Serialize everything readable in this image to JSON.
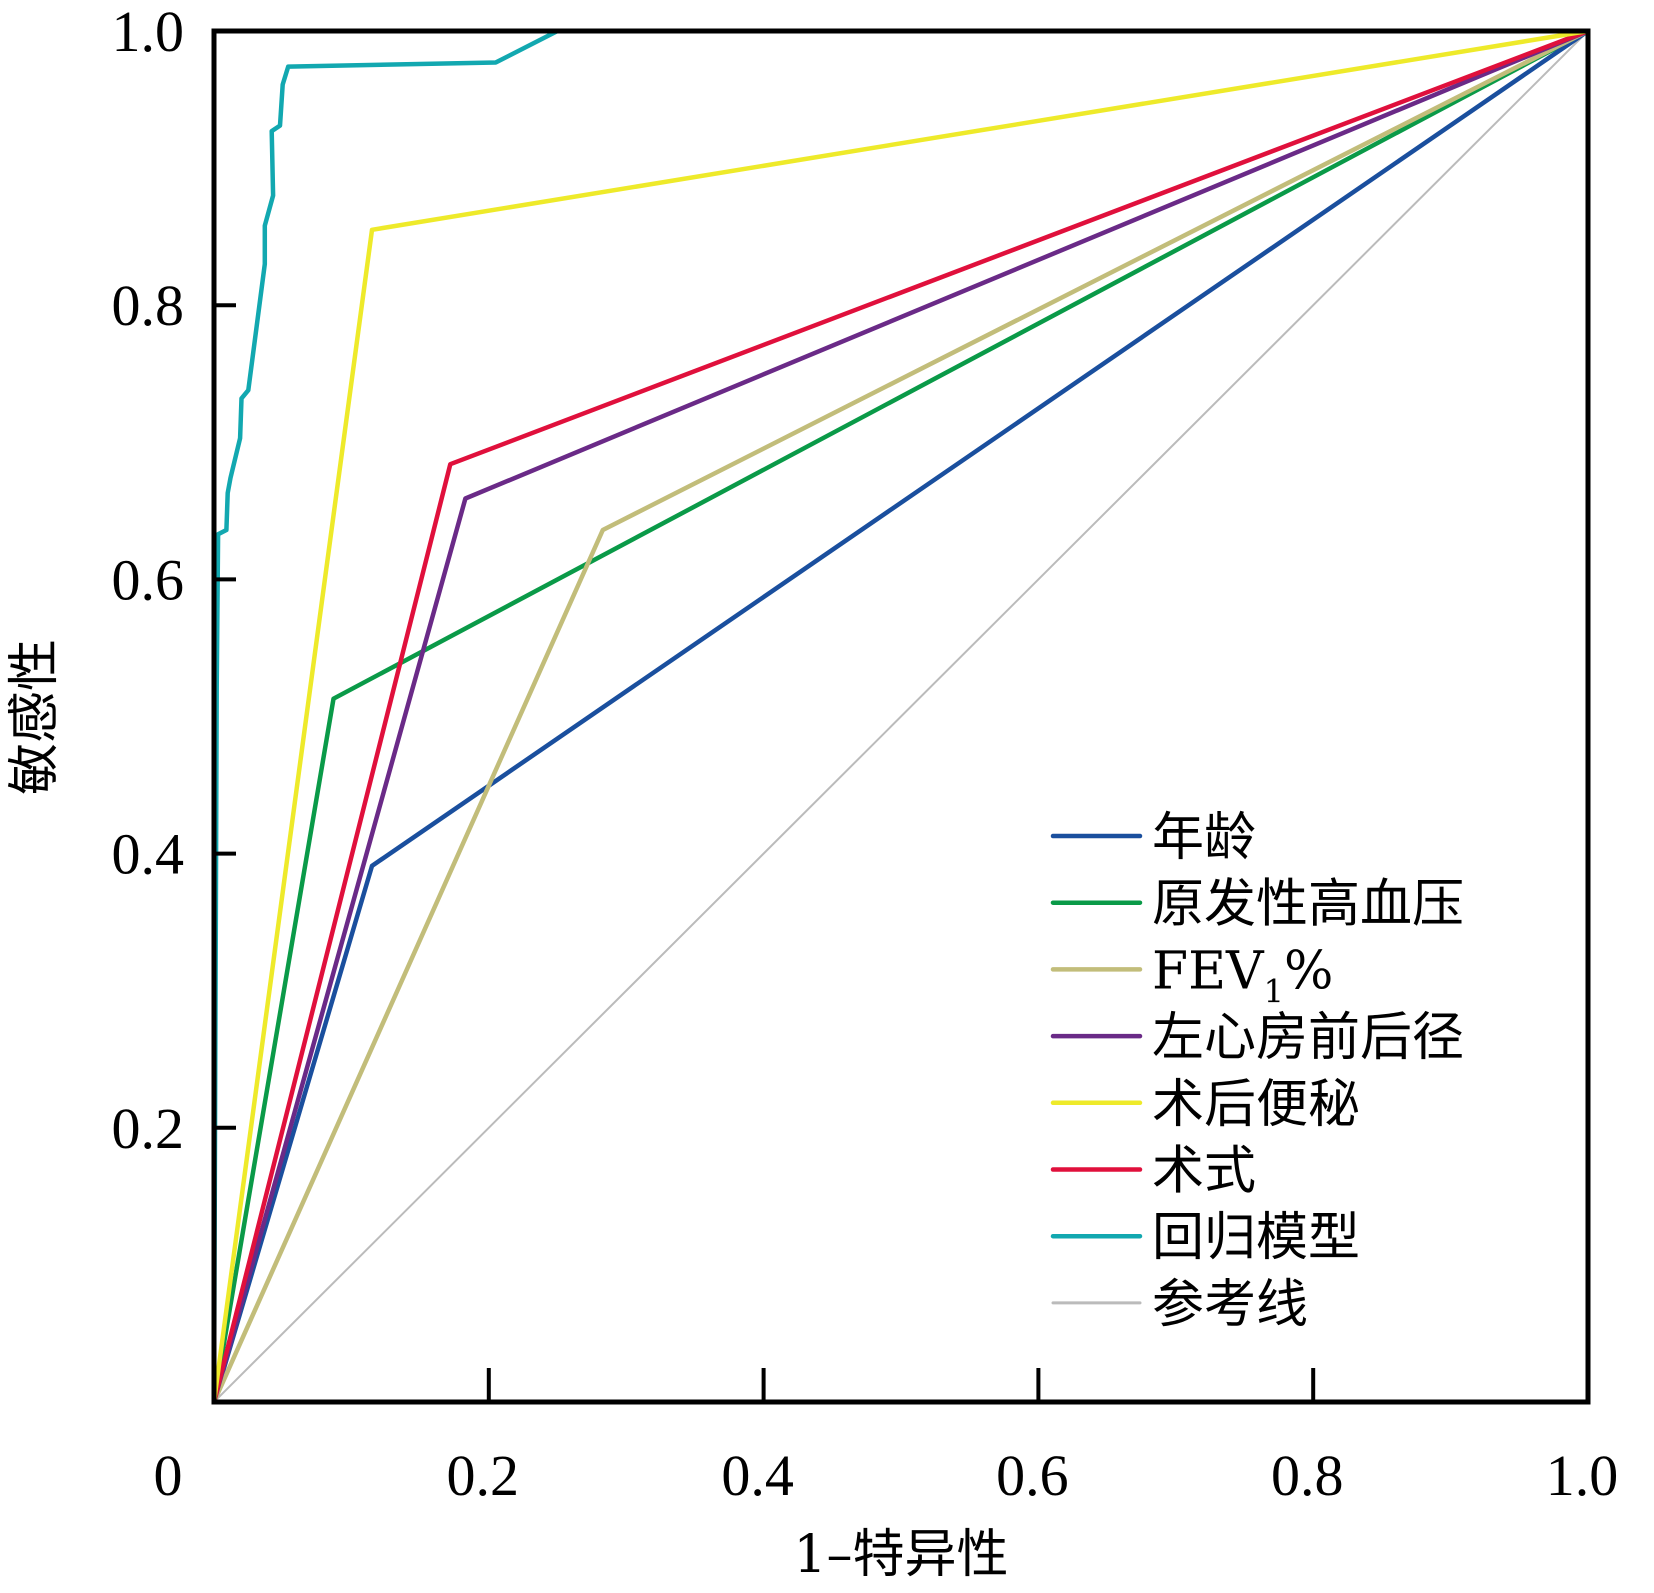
{
  "chart_data": {
    "type": "line",
    "title": "",
    "xlabel": "1–特异性",
    "ylabel": "敏感性",
    "xlim": [
      0,
      1
    ],
    "ylim": [
      0,
      1
    ],
    "grid": false,
    "legend_position": "bottom-right",
    "x_ticks": [
      {
        "value": 0,
        "label": "0"
      },
      {
        "value": 0.2,
        "label": "0.2"
      },
      {
        "value": 0.4,
        "label": "0.4"
      },
      {
        "value": 0.6,
        "label": "0.6"
      },
      {
        "value": 0.8,
        "label": "0.8"
      },
      {
        "value": 1.0,
        "label": "1.0"
      }
    ],
    "y_ticks": [
      {
        "value": 0.2,
        "label": "0.2"
      },
      {
        "value": 0.4,
        "label": "0.4"
      },
      {
        "value": 0.6,
        "label": "0.6"
      },
      {
        "value": 0.8,
        "label": "0.8"
      },
      {
        "value": 1.0,
        "label": "1.0"
      }
    ],
    "series": [
      {
        "name": "年龄",
        "color": "#1a4f9e",
        "x": [
          0,
          0.115,
          1
        ],
        "y": [
          0,
          0.391,
          1
        ]
      },
      {
        "name": "原发性高血压",
        "color": "#0a9a48",
        "x": [
          0,
          0.087,
          1
        ],
        "y": [
          0,
          0.513,
          1
        ]
      },
      {
        "name": "FEV1%",
        "name_main": "FEV",
        "name_sub": "1",
        "name_tail": "%",
        "color": "#c2bd7a",
        "x": [
          0,
          0.283,
          1
        ],
        "y": [
          0,
          0.636,
          1
        ]
      },
      {
        "name": "左心房前后径",
        "color": "#6a2a87",
        "x": [
          0,
          0.183,
          1
        ],
        "y": [
          0,
          0.659,
          1
        ]
      },
      {
        "name": "术后便秘",
        "color": "#eeea2a",
        "x": [
          0,
          0.115,
          1
        ],
        "y": [
          0,
          0.855,
          1
        ]
      },
      {
        "name": "术式",
        "color": "#e0103c",
        "x": [
          0,
          0.172,
          1
        ],
        "y": [
          0,
          0.684,
          1
        ]
      },
      {
        "name": "回归模型",
        "color": "#12a8b0",
        "x": [
          0,
          0.002,
          0.003,
          0.009,
          0.01,
          0.012,
          0.019,
          0.02,
          0.025,
          0.037,
          0.037,
          0.043,
          0.042,
          0.048,
          0.05,
          0.054,
          0.205,
          0.25,
          1
        ],
        "y": [
          0,
          0.521,
          0.633,
          0.636,
          0.663,
          0.674,
          0.703,
          0.732,
          0.738,
          0.83,
          0.858,
          0.88,
          0.927,
          0.931,
          0.961,
          0.974,
          0.977,
          1.0,
          1.0
        ]
      },
      {
        "name": "参考线",
        "color": "#bbbbbb",
        "x": [
          0,
          1
        ],
        "y": [
          0,
          1
        ]
      }
    ]
  }
}
